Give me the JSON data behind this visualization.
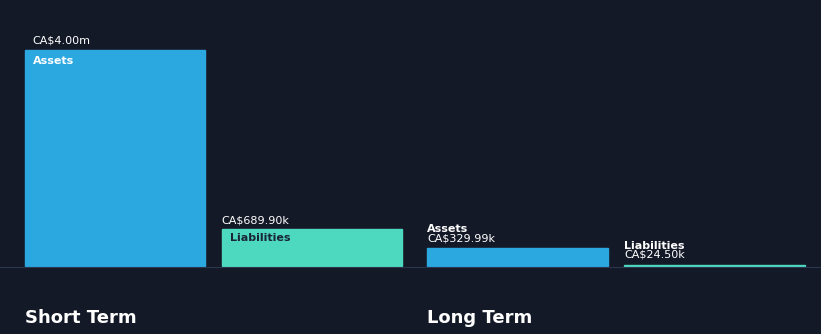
{
  "background_color": "#141927",
  "short_term": {
    "assets_value": 4000000,
    "liabilities_value": 689900,
    "assets_label": "CA$4.00m",
    "liabilities_label": "CA$689.90k",
    "assets_bar_label": "Assets",
    "liabilities_bar_label": "Liabilities",
    "assets_color": "#2BA8E0",
    "liabilities_color": "#4DD9C0"
  },
  "long_term": {
    "assets_value": 329990,
    "liabilities_value": 24500,
    "assets_label": "CA$329.99k",
    "liabilities_label": "CA$24.50k",
    "assets_bar_label": "Assets",
    "liabilities_bar_label": "Liabilities",
    "assets_color": "#2BA8E0",
    "liabilities_color": "#4DD9C0"
  },
  "section_labels": [
    "Short Term",
    "Long Term"
  ],
  "text_color": "#ffffff",
  "label_color": "#cccccc",
  "liabilities_label_color": "#1a2535",
  "label_fontsize": 8,
  "section_fontsize": 13,
  "bar_label_fontsize": 8,
  "y_max": 4300000,
  "separator_color": "#2a3550"
}
